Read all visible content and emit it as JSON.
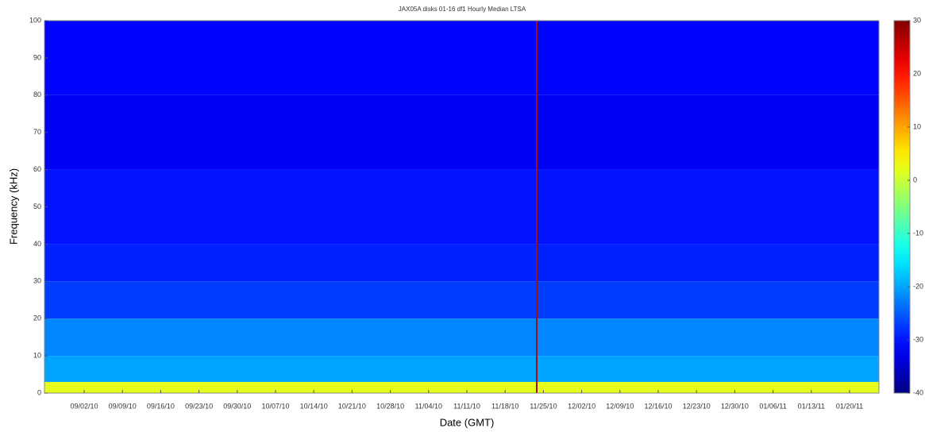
{
  "chart_data": {
    "type": "heatmap",
    "title": "JAX05A disks 01-16 df1 Hourly Median LTSA",
    "x_label": "Date (GMT)",
    "y_label": "Frequency (kHz)",
    "xticks": [
      "09/02/10",
      "09/09/10",
      "09/16/10",
      "09/23/10",
      "09/30/10",
      "10/07/10",
      "10/14/10",
      "10/21/10",
      "10/28/10",
      "11/04/10",
      "11/11/10",
      "11/18/10",
      "11/25/10",
      "12/02/10",
      "12/09/10",
      "12/16/10",
      "12/23/10",
      "12/30/10",
      "01/06/11",
      "01/13/11",
      "01/20/11"
    ],
    "ylim": [
      0,
      100
    ],
    "yticks": [
      0,
      10,
      20,
      30,
      40,
      50,
      60,
      70,
      80,
      90,
      100
    ],
    "ybins": [
      0,
      3,
      10,
      20,
      30,
      40,
      60,
      80,
      100
    ],
    "values": [
      2,
      -20,
      -22,
      -27,
      -29,
      -30,
      -32,
      -31
    ],
    "clim": [
      -40,
      30
    ],
    "cticks": [
      -40,
      -30,
      -20,
      -10,
      0,
      10,
      20,
      30
    ],
    "colormap": "jet"
  }
}
